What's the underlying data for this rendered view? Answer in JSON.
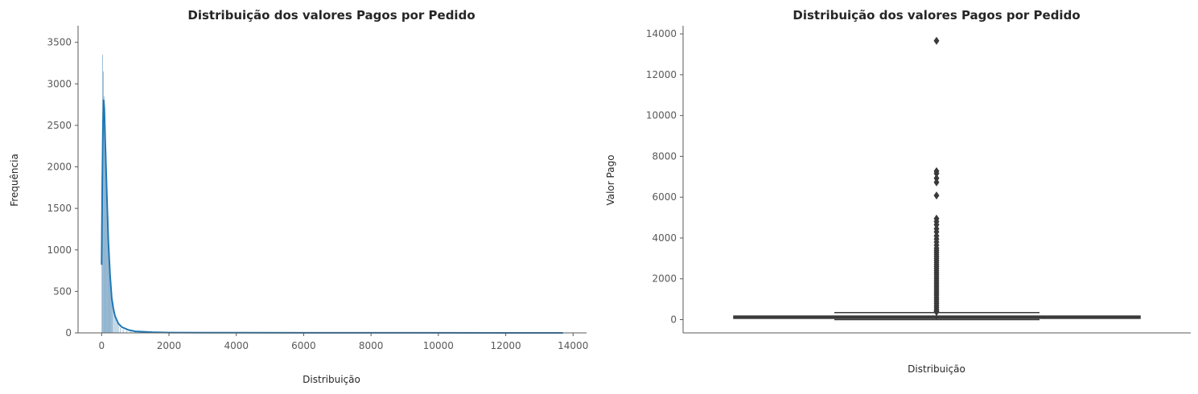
{
  "chart_data": [
    {
      "type": "histogram",
      "title": "Distribuição dos valores Pagos por Pedido",
      "xlabel": "Distribuição",
      "ylabel": "Frequência",
      "xlim": [
        -700,
        14400
      ],
      "ylim": [
        0,
        3700
      ],
      "xticks": [
        0,
        2000,
        4000,
        6000,
        8000,
        10000,
        12000,
        14000
      ],
      "yticks": [
        0,
        500,
        1000,
        1500,
        2000,
        2500,
        3000,
        3500
      ],
      "xtick_labels": [
        "0",
        "2000",
        "4000",
        "6000",
        "8000",
        "10000",
        "12000",
        "14000"
      ],
      "ytick_labels": [
        "0",
        "500",
        "1000",
        "1500",
        "2000",
        "2500",
        "3000",
        "3500"
      ],
      "bar_color": "#7fa8c9",
      "kde_color": "#1f77b4",
      "bins": [
        {
          "x": 10,
          "count": 1900
        },
        {
          "x": 30,
          "count": 3350
        },
        {
          "x": 50,
          "count": 3150
        },
        {
          "x": 70,
          "count": 2850
        },
        {
          "x": 90,
          "count": 2700
        },
        {
          "x": 110,
          "count": 2500
        },
        {
          "x": 130,
          "count": 2200
        },
        {
          "x": 150,
          "count": 1900
        },
        {
          "x": 170,
          "count": 1650
        },
        {
          "x": 190,
          "count": 1400
        },
        {
          "x": 210,
          "count": 1150
        },
        {
          "x": 230,
          "count": 950
        },
        {
          "x": 250,
          "count": 750
        },
        {
          "x": 270,
          "count": 600
        },
        {
          "x": 290,
          "count": 480
        },
        {
          "x": 310,
          "count": 380
        },
        {
          "x": 340,
          "count": 300
        },
        {
          "x": 380,
          "count": 230
        },
        {
          "x": 420,
          "count": 170
        },
        {
          "x": 460,
          "count": 120
        },
        {
          "x": 500,
          "count": 90
        },
        {
          "x": 560,
          "count": 60
        },
        {
          "x": 640,
          "count": 40
        },
        {
          "x": 740,
          "count": 25
        },
        {
          "x": 860,
          "count": 15
        },
        {
          "x": 1000,
          "count": 10
        },
        {
          "x": 1300,
          "count": 6
        },
        {
          "x": 1700,
          "count": 4
        },
        {
          "x": 2500,
          "count": 2
        },
        {
          "x": 4000,
          "count": 1
        },
        {
          "x": 7000,
          "count": 1
        },
        {
          "x": 13600,
          "count": 1
        }
      ],
      "bin_width": 20,
      "kde": [
        [
          0,
          820
        ],
        [
          20,
          1800
        ],
        [
          40,
          2500
        ],
        [
          60,
          2810
        ],
        [
          80,
          2700
        ],
        [
          100,
          2400
        ],
        [
          130,
          2000
        ],
        [
          160,
          1600
        ],
        [
          200,
          1100
        ],
        [
          250,
          700
        ],
        [
          300,
          420
        ],
        [
          350,
          290
        ],
        [
          400,
          200
        ],
        [
          500,
          110
        ],
        [
          600,
          70
        ],
        [
          800,
          35
        ],
        [
          1000,
          18
        ],
        [
          1500,
          8
        ],
        [
          2000,
          4
        ],
        [
          4000,
          2
        ],
        [
          8000,
          1
        ],
        [
          13700,
          0
        ]
      ]
    },
    {
      "type": "box",
      "title": "Distribuição dos valores Pagos por Pedido",
      "xlabel": "Distribuição",
      "ylabel": "Valor Pago",
      "ylim": [
        -650,
        14400
      ],
      "yticks": [
        0,
        2000,
        4000,
        6000,
        8000,
        10000,
        12000,
        14000
      ],
      "ytick_labels": [
        "0",
        "2000",
        "4000",
        "6000",
        "8000",
        "10000",
        "12000",
        "14000"
      ],
      "box_color": "#3a3a3a",
      "q1": 62,
      "median": 108,
      "q3": 176,
      "whisker_low": 0,
      "whisker_high": 345,
      "outliers": [
        13660,
        7275,
        7160,
        6930,
        6725,
        6080,
        4950,
        4800,
        4650,
        4450,
        4300,
        4100,
        3950,
        3800,
        3650,
        3500,
        3400,
        3300,
        3200,
        3100,
        3000,
        2900,
        2800,
        2700,
        2600,
        2500,
        2400,
        2300,
        2200,
        2100,
        2000,
        1900,
        1800,
        1700,
        1600,
        1500,
        1400,
        1300,
        1200,
        1100,
        1000,
        900,
        800,
        700,
        600,
        500,
        420,
        380
      ]
    }
  ]
}
